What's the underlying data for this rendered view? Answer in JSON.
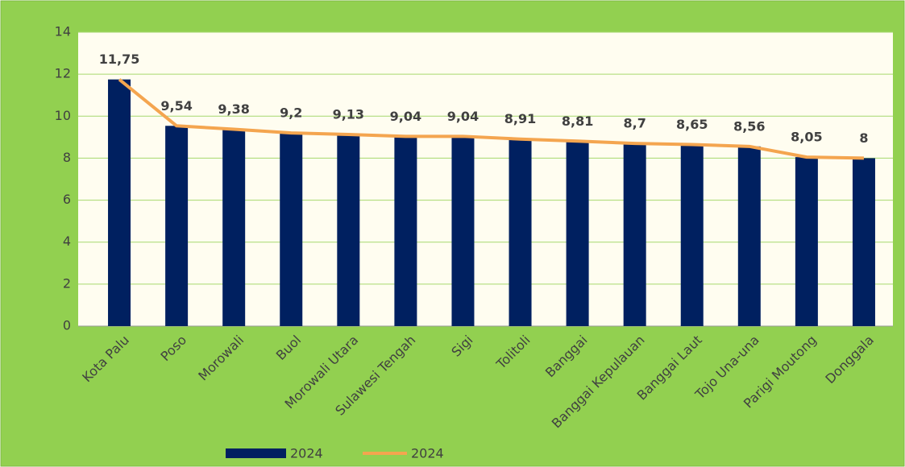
{
  "chart_data": {
    "type": "bar",
    "categories": [
      "Kota Palu",
      "Poso",
      "Morowali",
      "Buol",
      "Morowali Utara",
      "Sulawesi Tengah",
      "Sigi",
      "Tolitoli",
      "Banggai",
      "Banggai Kepulauan",
      "Banggai Laut",
      "Tojo Una-una",
      "Parigi Moutong",
      "Donggala"
    ],
    "series": [
      {
        "name": "2024",
        "type": "bar",
        "color": "#002060",
        "values": [
          11.75,
          9.54,
          9.38,
          9.2,
          9.13,
          9.04,
          9.04,
          8.91,
          8.81,
          8.7,
          8.65,
          8.56,
          8.05,
          8
        ]
      },
      {
        "name": "2024",
        "type": "line",
        "color": "#f4a54f",
        "values": [
          11.75,
          9.54,
          9.38,
          9.2,
          9.13,
          9.04,
          9.04,
          8.91,
          8.81,
          8.7,
          8.65,
          8.56,
          8.05,
          8
        ],
        "value_labels": [
          "11,75",
          "9,54",
          "9,38",
          "9,2",
          "9,13",
          "9,04",
          "9,04",
          "8,91",
          "8,81",
          "8,7",
          "8,65",
          "8,56",
          "8,05",
          "8"
        ]
      }
    ],
    "ylim": [
      0,
      14
    ],
    "yticks": [
      0,
      2,
      4,
      6,
      8,
      10,
      12,
      14
    ],
    "grid": true,
    "legend": "bottom"
  }
}
